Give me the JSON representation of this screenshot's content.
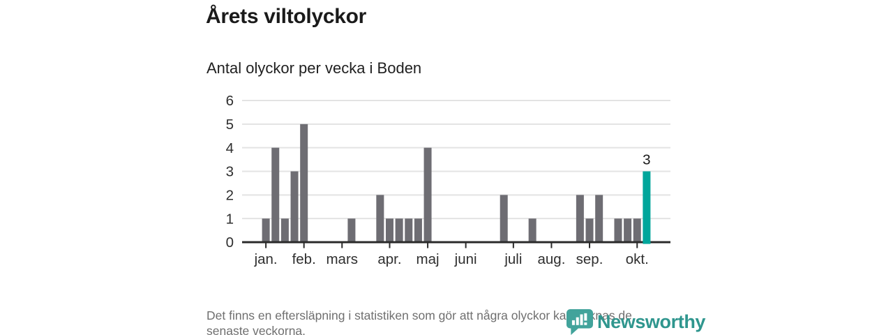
{
  "title": "Årets viltolyckor",
  "subtitle": "Antal olyckor per vecka i Boden",
  "footnote_lines": {
    "0": "Det finns en eftersläpning i statistiken som gör att några olyckor kan saknas de",
    "1": "senaste veckorna."
  },
  "logo": {
    "name": "Newsworthy",
    "icon": "newsworthy-speech-bubble-bar-chart-icon",
    "text_color": "#2f968e",
    "icon_color": "#42a39b"
  },
  "chart_data": {
    "type": "bar",
    "title": "Årets viltolyckor",
    "subtitle": "Antal olyckor per vecka i Boden",
    "x_unit": "vecka",
    "values": [
      1,
      4,
      1,
      3,
      5,
      0,
      0,
      0,
      0,
      1,
      0,
      0,
      2,
      1,
      1,
      1,
      1,
      4,
      0,
      0,
      0,
      0,
      0,
      0,
      0,
      2,
      0,
      0,
      1,
      0,
      0,
      0,
      0,
      2,
      1,
      2,
      0,
      1,
      1,
      1,
      3
    ],
    "month_ticks": [
      {
        "label": "jan.",
        "index": 0
      },
      {
        "label": "feb.",
        "index": 4
      },
      {
        "label": "mars",
        "index": 8
      },
      {
        "label": "apr.",
        "index": 13
      },
      {
        "label": "maj",
        "index": 17
      },
      {
        "label": "juni",
        "index": 21
      },
      {
        "label": "juli",
        "index": 26
      },
      {
        "label": "aug.",
        "index": 30
      },
      {
        "label": "sep.",
        "index": 34
      },
      {
        "label": "okt.",
        "index": 39
      }
    ],
    "yticks": [
      0,
      1,
      2,
      3,
      4,
      5,
      6
    ],
    "ylim": [
      0,
      6
    ],
    "grid": "horizontal",
    "legend": "none",
    "lead_empty_slots": 2,
    "trail_empty_slots": 2,
    "bar_color": "#6e6d73",
    "highlight": {
      "index": 40,
      "value": 3,
      "label": "3",
      "color": "#00a69b"
    },
    "grid_color": "#e3e3e3",
    "axis_color": "#2b2b2b",
    "label_color": "#2f2f2f",
    "value_label_color": "#1a1a1a"
  }
}
